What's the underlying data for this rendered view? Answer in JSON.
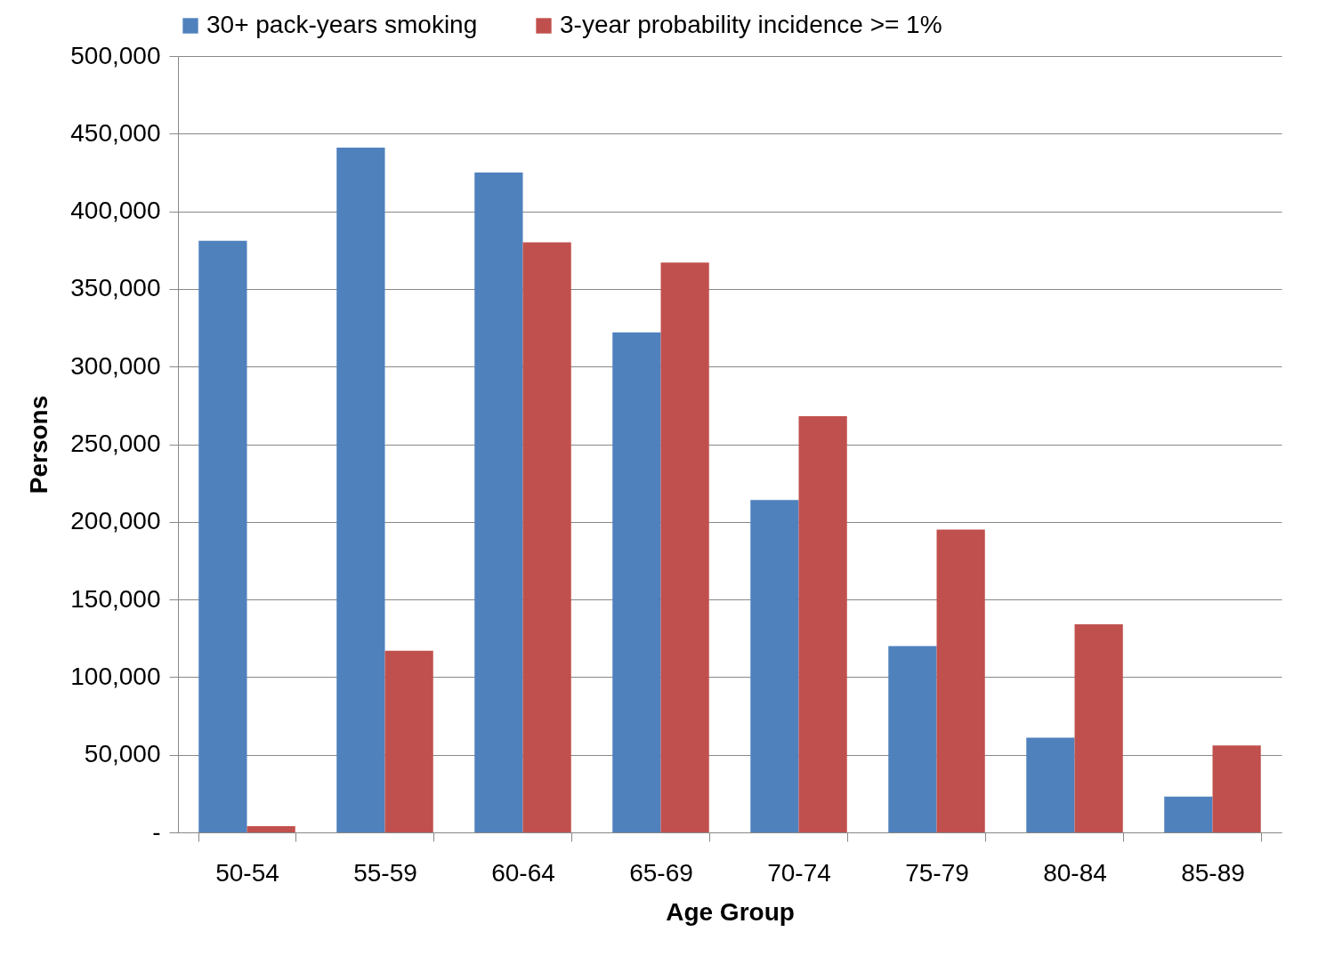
{
  "chart_data": {
    "type": "bar",
    "xlabel": "Age Group",
    "ylabel": "Persons",
    "categories": [
      "50-54",
      "55-59",
      "60-64",
      "65-69",
      "70-74",
      "75-79",
      "80-84",
      "85-89"
    ],
    "series": [
      {
        "name": "30+ pack-years smoking",
        "color": "#4f81bd",
        "values": [
          381000,
          441000,
          425000,
          322000,
          214000,
          120000,
          61000,
          23000
        ]
      },
      {
        "name": "3-year probability incidence >= 1%",
        "color": "#c0504d",
        "values": [
          4000,
          117000,
          380000,
          367000,
          268000,
          195000,
          134000,
          56000
        ]
      }
    ],
    "ylim": [
      0,
      500000
    ],
    "yticks": [
      {
        "value": 0,
        "label": "-"
      },
      {
        "value": 50000,
        "label": "50,000"
      },
      {
        "value": 100000,
        "label": "100,000"
      },
      {
        "value": 150000,
        "label": "150,000"
      },
      {
        "value": 200000,
        "label": "200,000"
      },
      {
        "value": 250000,
        "label": "250,000"
      },
      {
        "value": 300000,
        "label": "300,000"
      },
      {
        "value": 350000,
        "label": "350,000"
      },
      {
        "value": 400000,
        "label": "400,000"
      },
      {
        "value": 450000,
        "label": "450,000"
      },
      {
        "value": 500000,
        "label": "500,000"
      }
    ],
    "grid": "y",
    "legend": "top"
  }
}
